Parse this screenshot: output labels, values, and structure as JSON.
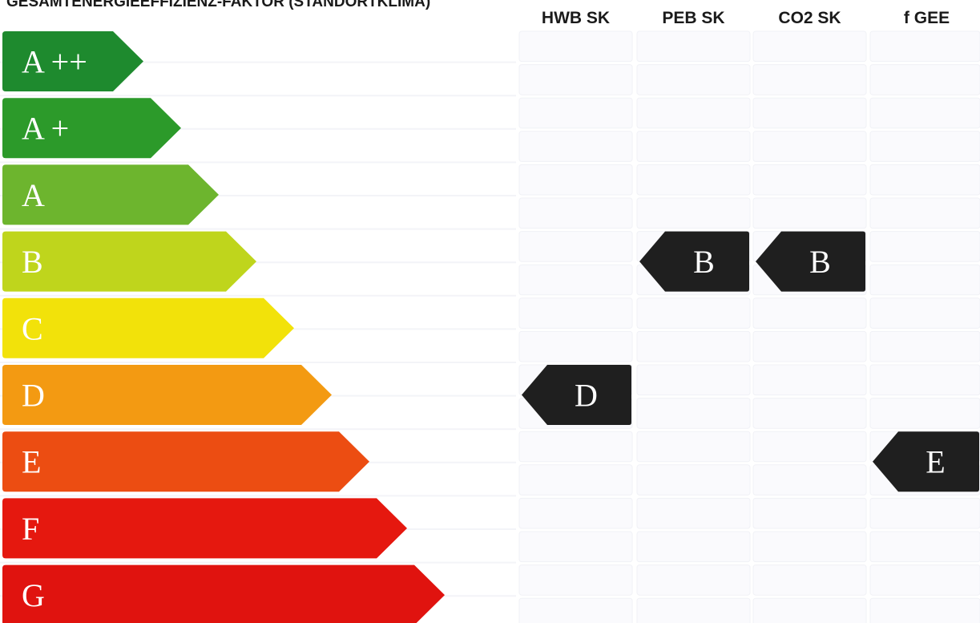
{
  "chart_data": {
    "type": "table",
    "title": "GESAMTENERGIEEFFIZIENZ-FAKTOR (STANDORTKLIMA)",
    "classes": [
      {
        "label": "A ++",
        "color": "#1e8a2e"
      },
      {
        "label": "A +",
        "color": "#2c9a2a"
      },
      {
        "label": "A",
        "color": "#6db52e"
      },
      {
        "label": "B",
        "color": "#bfd51c"
      },
      {
        "label": "C",
        "color": "#f2e20a"
      },
      {
        "label": "D",
        "color": "#f39a12"
      },
      {
        "label": "E",
        "color": "#ec4d12"
      },
      {
        "label": "F",
        "color": "#e5180f"
      },
      {
        "label": "G",
        "color": "#e0130f"
      }
    ],
    "columns": [
      {
        "header": "HWB SK",
        "rating": "D"
      },
      {
        "header": "PEB SK",
        "rating": "B"
      },
      {
        "header": "CO2 SK",
        "rating": "B"
      },
      {
        "header": "f GEE",
        "rating": "E"
      }
    ],
    "marker_color": "#1f1f1f",
    "grid": true
  }
}
